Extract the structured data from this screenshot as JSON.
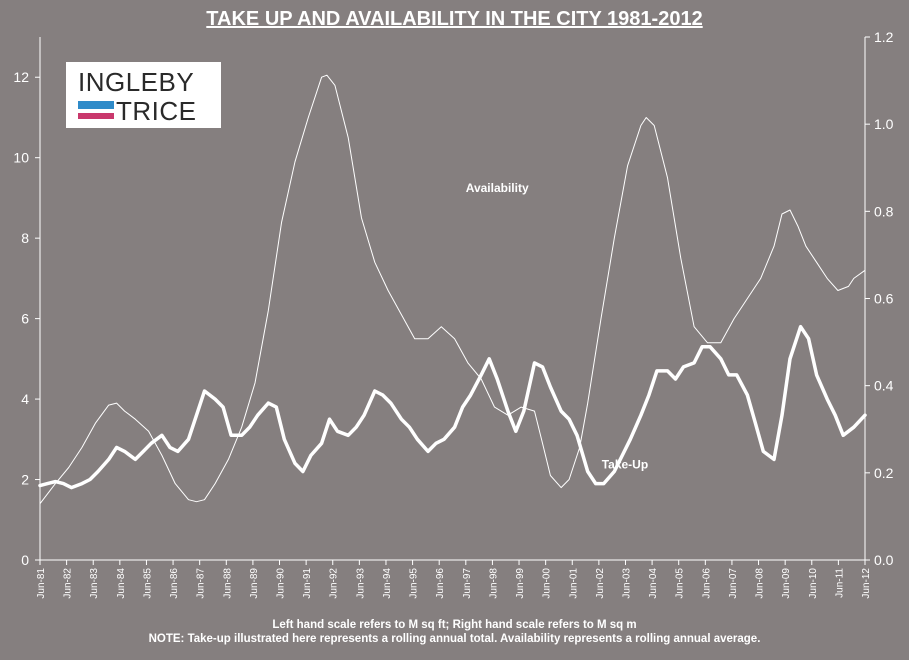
{
  "title": "TAKE UP AND AVAILABILITY IN THE CITY 1981-2012",
  "logo": {
    "line1": "INGLEBY",
    "line2": "TRICE",
    "colors": {
      "blue": "#2f8bc9",
      "pink": "#c9386c"
    }
  },
  "notes": {
    "line1": "Left hand scale refers to M sq ft; Right hand scale refers to M sq m",
    "line2": "NOTE: Take-up illustrated here represents a rolling annual total. Availability represents a rolling annual average."
  },
  "colors": {
    "background": "#857f7f",
    "lines": "#ffffff"
  },
  "chart_data": {
    "type": "line",
    "title": "TAKE UP AND AVAILABILITY IN THE CITY 1981-2012",
    "x_tick_labels": [
      "Jun-81",
      "Jun-82",
      "Jun-83",
      "Jun-84",
      "Jun-85",
      "Jun-86",
      "Jun-87",
      "Jun-88",
      "Jun-89",
      "Jun-90",
      "Jun-91",
      "Jun-92",
      "Jun-93",
      "Jun-94",
      "Jun-95",
      "Jun-96",
      "Jun-97",
      "Jun-98",
      "Jun-99",
      "Jun-00",
      "Jun-01",
      "Jun-02",
      "Jun-03",
      "Jun-04",
      "Jun-05",
      "Jun-06",
      "Jun-07",
      "Jun-08",
      "Jun-09",
      "Jun-10",
      "Jun-11",
      "Jun-12"
    ],
    "x_range": [
      1981.42,
      2012.42
    ],
    "y_left": {
      "label": "M sq ft",
      "range": [
        0,
        13
      ],
      "ticks": [
        0,
        2,
        4,
        6,
        8,
        10,
        12
      ]
    },
    "y_right": {
      "label": "M sq m",
      "range": [
        0,
        1.2
      ],
      "ticks": [
        "0.0",
        "0.2",
        "0.4",
        "0.6",
        "0.8",
        "1.0",
        "1.2"
      ]
    },
    "grid": false,
    "series": [
      {
        "name": "Availability",
        "style": "thin",
        "label_x": 1998.6,
        "label_y": 9.15,
        "x": [
          1981.42,
          1982.0,
          1982.5,
          1983.0,
          1983.5,
          1984.0,
          1984.3,
          1984.6,
          1985.0,
          1985.5,
          1986.0,
          1986.5,
          1987.0,
          1987.3,
          1987.6,
          1988.0,
          1988.5,
          1989.0,
          1989.5,
          1990.0,
          1990.5,
          1991.0,
          1991.5,
          1992.0,
          1992.2,
          1992.5,
          1993.0,
          1993.5,
          1994.0,
          1994.5,
          1995.0,
          1995.5,
          1996.0,
          1996.5,
          1997.0,
          1997.5,
          1998.0,
          1998.5,
          1999.0,
          1999.5,
          2000.0,
          2000.3,
          2000.6,
          2001.0,
          2001.3,
          2001.7,
          2002.0,
          2002.5,
          2003.0,
          2003.5,
          2004.0,
          2004.2,
          2004.5,
          2005.0,
          2005.5,
          2006.0,
          2006.5,
          2007.0,
          2007.5,
          2008.0,
          2008.5,
          2009.0,
          2009.3,
          2009.6,
          2009.9,
          2010.2,
          2010.6,
          2011.0,
          2011.4,
          2011.8,
          2012.0,
          2012.42
        ],
        "values": [
          1.4,
          1.9,
          2.3,
          2.8,
          3.4,
          3.85,
          3.9,
          3.7,
          3.5,
          3.2,
          2.6,
          1.9,
          1.5,
          1.45,
          1.5,
          1.9,
          2.5,
          3.3,
          4.4,
          6.2,
          8.4,
          9.9,
          11.0,
          12.0,
          12.05,
          11.8,
          10.5,
          8.5,
          7.4,
          6.7,
          6.1,
          5.5,
          5.5,
          5.8,
          5.5,
          4.9,
          4.5,
          3.8,
          3.6,
          3.8,
          3.7,
          2.9,
          2.1,
          1.8,
          2.0,
          2.8,
          3.9,
          6.0,
          8.0,
          9.8,
          10.8,
          11.0,
          10.8,
          9.5,
          7.5,
          5.8,
          5.4,
          5.4,
          6.0,
          6.5,
          7.0,
          7.8,
          8.6,
          8.7,
          8.3,
          7.8,
          7.4,
          7.0,
          6.7,
          6.8,
          7.0,
          7.2
        ]
      },
      {
        "name": "Take-Up",
        "style": "thick",
        "label_x": 2003.4,
        "label_y": 2.28,
        "x": [
          1981.42,
          1981.7,
          1982.0,
          1982.3,
          1982.6,
          1983.0,
          1983.3,
          1983.6,
          1984.0,
          1984.3,
          1984.6,
          1985.0,
          1985.3,
          1985.6,
          1986.0,
          1986.3,
          1986.6,
          1987.0,
          1987.3,
          1987.6,
          1988.0,
          1988.3,
          1988.6,
          1989.0,
          1989.3,
          1989.6,
          1990.0,
          1990.3,
          1990.6,
          1991.0,
          1991.3,
          1991.6,
          1992.0,
          1992.3,
          1992.6,
          1993.0,
          1993.3,
          1993.6,
          1994.0,
          1994.3,
          1994.6,
          1995.0,
          1995.3,
          1995.6,
          1996.0,
          1996.3,
          1996.6,
          1997.0,
          1997.3,
          1997.6,
          1998.0,
          1998.3,
          1998.6,
          1999.0,
          1999.3,
          1999.6,
          2000.0,
          2000.3,
          2000.6,
          2001.0,
          2001.3,
          2001.6,
          2002.0,
          2002.3,
          2002.6,
          2003.0,
          2003.3,
          2003.6,
          2004.0,
          2004.3,
          2004.6,
          2005.0,
          2005.3,
          2005.6,
          2006.0,
          2006.3,
          2006.6,
          2007.0,
          2007.3,
          2007.6,
          2008.0,
          2008.3,
          2008.6,
          2009.0,
          2009.3,
          2009.6,
          2010.0,
          2010.3,
          2010.6,
          2011.0,
          2011.3,
          2011.6,
          2012.0,
          2012.42
        ],
        "values": [
          1.85,
          1.9,
          1.95,
          1.9,
          1.8,
          1.9,
          2.0,
          2.2,
          2.5,
          2.8,
          2.7,
          2.5,
          2.7,
          2.9,
          3.1,
          2.8,
          2.7,
          3.0,
          3.6,
          4.2,
          4.0,
          3.8,
          3.1,
          3.1,
          3.3,
          3.6,
          3.9,
          3.8,
          3.0,
          2.4,
          2.2,
          2.6,
          2.9,
          3.5,
          3.2,
          3.1,
          3.3,
          3.6,
          4.2,
          4.1,
          3.9,
          3.5,
          3.3,
          3.0,
          2.7,
          2.9,
          3.0,
          3.3,
          3.8,
          4.1,
          4.6,
          5.0,
          4.5,
          3.7,
          3.2,
          3.7,
          4.9,
          4.8,
          4.3,
          3.7,
          3.5,
          3.1,
          2.2,
          1.9,
          1.9,
          2.2,
          2.6,
          3.0,
          3.6,
          4.1,
          4.7,
          4.7,
          4.5,
          4.8,
          4.9,
          5.3,
          5.3,
          5.0,
          4.6,
          4.6,
          4.1,
          3.4,
          2.7,
          2.5,
          3.6,
          5.0,
          5.8,
          5.5,
          4.6,
          4.0,
          3.6,
          3.1,
          3.3,
          3.6
        ]
      }
    ]
  }
}
